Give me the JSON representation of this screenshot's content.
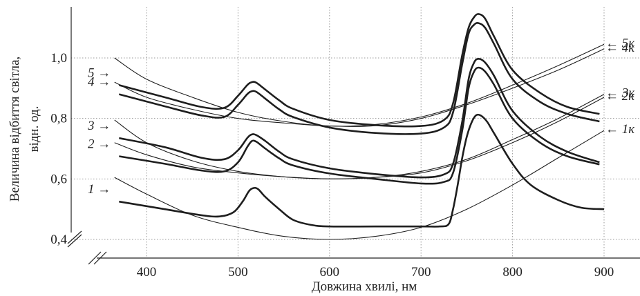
{
  "chart_data": {
    "type": "line",
    "xlabel": "Довжина хвилі, нм",
    "ylabel_line1": "Величина відбиття світла,",
    "ylabel_line2": "відн. од.",
    "xlim": [
      300,
      940
    ],
    "ylim": [
      0.4,
      1.17
    ],
    "y_broken_axis": true,
    "grid": "dotted",
    "x_ticks": [
      {
        "value": 400,
        "label": "400"
      },
      {
        "value": 500,
        "label": "500"
      },
      {
        "value": 600,
        "label": "600"
      },
      {
        "value": 700,
        "label": "700"
      },
      {
        "value": 800,
        "label": "800"
      },
      {
        "value": 900,
        "label": "900"
      }
    ],
    "y_ticks": [
      {
        "value": 0.4,
        "label": "0,4"
      },
      {
        "value": 0.6,
        "label": "0,6"
      },
      {
        "value": 0.8,
        "label": "0,8"
      },
      {
        "value": 1.0,
        "label": "1,0"
      }
    ],
    "series": [
      {
        "name": "1",
        "style": "thick",
        "label_side": "left",
        "label": "1 →",
        "x": [
          370,
          420,
          460,
          480,
          495,
          505,
          512,
          517,
          522,
          530,
          545,
          560,
          580,
          600,
          650,
          700,
          720,
          730,
          735,
          740,
          745,
          750,
          755,
          760,
          765,
          772,
          780,
          800,
          820,
          850,
          875,
          900
        ],
        "y": [
          0.525,
          0.5,
          0.48,
          0.476,
          0.49,
          0.525,
          0.56,
          0.57,
          0.566,
          0.54,
          0.5,
          0.465,
          0.448,
          0.443,
          0.443,
          0.443,
          0.443,
          0.45,
          0.5,
          0.58,
          0.67,
          0.74,
          0.785,
          0.81,
          0.81,
          0.79,
          0.75,
          0.65,
          0.58,
          0.53,
          0.505,
          0.5
        ]
      },
      {
        "name": "2",
        "style": "thick",
        "label_side": "left",
        "label": "2 →",
        "x": [
          370,
          420,
          460,
          485,
          500,
          510,
          515,
          520,
          530,
          545,
          560,
          600,
          650,
          700,
          725,
          735,
          745,
          752,
          758,
          763,
          770,
          780,
          800,
          830,
          860,
          895
        ],
        "y": [
          0.675,
          0.65,
          0.628,
          0.625,
          0.655,
          0.705,
          0.725,
          0.723,
          0.7,
          0.668,
          0.645,
          0.618,
          0.6,
          0.585,
          0.59,
          0.62,
          0.76,
          0.9,
          0.955,
          0.968,
          0.955,
          0.91,
          0.8,
          0.72,
          0.675,
          0.648
        ]
      },
      {
        "name": "3",
        "style": "thick",
        "label_side": "left",
        "label": "3 →",
        "x": [
          370,
          420,
          460,
          485,
          500,
          510,
          515,
          520,
          530,
          545,
          560,
          600,
          650,
          700,
          725,
          735,
          745,
          752,
          758,
          763,
          770,
          780,
          800,
          830,
          860,
          895
        ],
        "y": [
          0.735,
          0.705,
          0.67,
          0.665,
          0.695,
          0.735,
          0.747,
          0.745,
          0.725,
          0.69,
          0.665,
          0.635,
          0.616,
          0.605,
          0.615,
          0.65,
          0.79,
          0.93,
          0.985,
          0.997,
          0.985,
          0.94,
          0.825,
          0.74,
          0.69,
          0.655
        ]
      },
      {
        "name": "4",
        "style": "thick",
        "label_side": "left",
        "label": "4 →",
        "x": [
          370,
          420,
          460,
          485,
          500,
          510,
          515,
          520,
          530,
          545,
          560,
          600,
          650,
          700,
          725,
          735,
          745,
          752,
          758,
          763,
          770,
          780,
          800,
          830,
          860,
          895
        ],
        "y": [
          0.88,
          0.84,
          0.81,
          0.805,
          0.845,
          0.88,
          0.89,
          0.888,
          0.865,
          0.83,
          0.805,
          0.77,
          0.752,
          0.75,
          0.77,
          0.82,
          0.98,
          1.08,
          1.11,
          1.115,
          1.1,
          1.045,
          0.93,
          0.855,
          0.815,
          0.79
        ]
      },
      {
        "name": "5",
        "style": "thick",
        "label_side": "left",
        "label": "5 →",
        "x": [
          370,
          420,
          460,
          485,
          500,
          510,
          515,
          520,
          530,
          545,
          560,
          600,
          650,
          700,
          725,
          735,
          745,
          752,
          758,
          763,
          770,
          780,
          800,
          830,
          860,
          895
        ],
        "y": [
          0.91,
          0.87,
          0.838,
          0.835,
          0.875,
          0.91,
          0.92,
          0.918,
          0.895,
          0.86,
          0.832,
          0.795,
          0.778,
          0.775,
          0.795,
          0.85,
          1.01,
          1.1,
          1.135,
          1.145,
          1.13,
          1.07,
          0.96,
          0.885,
          0.838,
          0.815
        ]
      },
      {
        "name": "1к",
        "style": "thin",
        "label_side": "right",
        "label": "← 1к",
        "x": [
          365,
          400,
          450,
          500,
          550,
          600,
          650,
          700,
          750,
          800,
          850,
          900
        ],
        "y": [
          0.605,
          0.55,
          0.48,
          0.44,
          0.41,
          0.4,
          0.41,
          0.44,
          0.5,
          0.58,
          0.67,
          0.76
        ]
      },
      {
        "name": "2к",
        "style": "thin",
        "label_side": "right",
        "label": "← 2к",
        "x": [
          365,
          400,
          450,
          500,
          550,
          600,
          650,
          700,
          750,
          800,
          850,
          900
        ],
        "y": [
          0.72,
          0.68,
          0.64,
          0.62,
          0.607,
          0.6,
          0.605,
          0.62,
          0.66,
          0.72,
          0.79,
          0.87
        ]
      },
      {
        "name": "3к",
        "style": "thin",
        "label_side": "right",
        "label": "← 3к",
        "x": [
          365,
          400,
          450,
          500,
          550,
          600,
          650,
          700,
          750,
          800,
          850,
          900
        ],
        "y": [
          0.795,
          0.72,
          0.66,
          0.625,
          0.607,
          0.6,
          0.605,
          0.625,
          0.665,
          0.73,
          0.8,
          0.88
        ]
      },
      {
        "name": "4к",
        "style": "thin",
        "label_side": "right",
        "label": "← 4к",
        "x": [
          365,
          400,
          450,
          500,
          550,
          600,
          650,
          700,
          750,
          800,
          850,
          900
        ],
        "y": [
          0.92,
          0.87,
          0.83,
          0.8,
          0.785,
          0.775,
          0.776,
          0.8,
          0.845,
          0.9,
          0.96,
          1.03
        ]
      },
      {
        "name": "5к",
        "style": "thin",
        "label_side": "right",
        "label": "← 5к",
        "x": [
          365,
          400,
          450,
          500,
          550,
          600,
          650,
          700,
          750,
          800,
          850,
          900
        ],
        "y": [
          1.0,
          0.93,
          0.87,
          0.82,
          0.79,
          0.775,
          0.78,
          0.805,
          0.85,
          0.91,
          0.975,
          1.045
        ]
      }
    ]
  }
}
